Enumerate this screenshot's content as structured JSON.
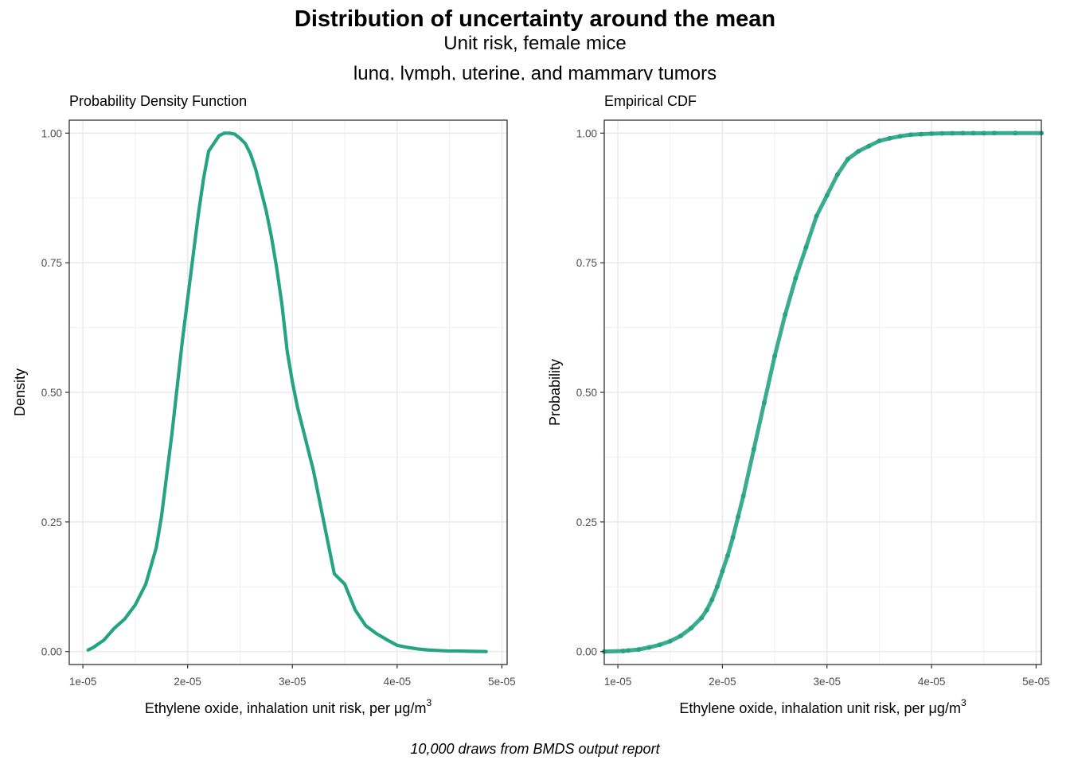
{
  "figure": {
    "title": "Distribution of uncertainty around the mean",
    "subtitle_line1": "Unit risk, female mice",
    "subtitle_line2": "lung, lymph, uterine, and mammary tumors",
    "caption": "10,000 draws from BMDS output report",
    "accent_color": "#26a383"
  },
  "chart_data": [
    {
      "type": "line",
      "title": "Probability Density Function",
      "xlabel": "Ethylene oxide, inhalation unit risk, per μg/m",
      "xlabel_superscript": "3",
      "ylabel": "Density",
      "xlim": [
        8.7e-06,
        5.05e-05
      ],
      "ylim": [
        -0.025,
        1.025
      ],
      "x_ticks": [
        1e-05,
        2e-05,
        3e-05,
        4e-05,
        5e-05
      ],
      "x_tick_labels": [
        "1e-05",
        "2e-05",
        "3e-05",
        "4e-05",
        "5e-05"
      ],
      "y_ticks": [
        0,
        0.25,
        0.5,
        0.75,
        1
      ],
      "y_tick_labels": [
        "0.00",
        "0.25",
        "0.50",
        "0.75",
        "1.00"
      ],
      "grid": true,
      "series": [
        {
          "x": [
            1.05e-05,
            1.1e-05,
            1.2e-05,
            1.3e-05,
            1.4e-05,
            1.5e-05,
            1.6e-05,
            1.7e-05,
            1.75e-05,
            1.8e-05,
            1.85e-05,
            1.9e-05,
            1.95e-05,
            2e-05,
            2.1e-05,
            2.15e-05,
            2.2e-05,
            2.3e-05,
            2.35e-05,
            2.4e-05,
            2.45e-05,
            2.5e-05,
            2.55e-05,
            2.6e-05,
            2.65e-05,
            2.7e-05,
            2.75e-05,
            2.8e-05,
            2.85e-05,
            2.9e-05,
            2.95e-05,
            3e-05,
            3.05e-05,
            3.1e-05,
            3.2e-05,
            3.25e-05,
            3.3e-05,
            3.35e-05,
            3.4e-05,
            3.5e-05,
            3.6e-05,
            3.7e-05,
            3.8e-05,
            3.9e-05,
            4e-05,
            4.1e-05,
            4.2e-05,
            4.3e-05,
            4.4e-05,
            4.5e-05,
            4.6e-05,
            4.7e-05,
            4.85e-05
          ],
          "y": [
            0.003,
            0.008,
            0.022,
            0.045,
            0.063,
            0.09,
            0.13,
            0.2,
            0.26,
            0.34,
            0.42,
            0.51,
            0.6,
            0.68,
            0.84,
            0.91,
            0.965,
            0.995,
            1.0,
            1.0,
            0.998,
            0.99,
            0.98,
            0.96,
            0.93,
            0.89,
            0.85,
            0.8,
            0.74,
            0.67,
            0.58,
            0.52,
            0.47,
            0.43,
            0.35,
            0.3,
            0.25,
            0.2,
            0.15,
            0.13,
            0.08,
            0.05,
            0.035,
            0.023,
            0.012,
            0.008,
            0.005,
            0.003,
            0.002,
            0.001,
            0.001,
            0.0005,
            0.0
          ]
        }
      ]
    },
    {
      "type": "scatter",
      "title": "Empirical CDF",
      "xlabel": "Ethylene oxide, inhalation unit risk, per μg/m",
      "xlabel_superscript": "3",
      "ylabel": "Probability",
      "xlim": [
        8.7e-06,
        5.05e-05
      ],
      "ylim": [
        -0.025,
        1.025
      ],
      "x_ticks": [
        1e-05,
        2e-05,
        3e-05,
        4e-05,
        5e-05
      ],
      "x_tick_labels": [
        "1e-05",
        "2e-05",
        "3e-05",
        "4e-05",
        "5e-05"
      ],
      "y_ticks": [
        0,
        0.25,
        0.5,
        0.75,
        1
      ],
      "y_tick_labels": [
        "0.00",
        "0.25",
        "0.50",
        "0.75",
        "1.00"
      ],
      "grid": true,
      "series": [
        {
          "x": [
            8.7e-06,
            1.05e-05,
            1.1e-05,
            1.2e-05,
            1.3e-05,
            1.4e-05,
            1.5e-05,
            1.6e-05,
            1.7e-05,
            1.8e-05,
            1.85e-05,
            1.9e-05,
            1.95e-05,
            2e-05,
            2.05e-05,
            2.1e-05,
            2.15e-05,
            2.2e-05,
            2.3e-05,
            2.4e-05,
            2.5e-05,
            2.6e-05,
            2.7e-05,
            2.8e-05,
            2.9e-05,
            3e-05,
            3.1e-05,
            3.2e-05,
            3.3e-05,
            3.4e-05,
            3.5e-05,
            3.6e-05,
            3.7e-05,
            3.8e-05,
            3.9e-05,
            4e-05,
            4.1e-05,
            4.2e-05,
            4.3e-05,
            4.4e-05,
            4.5e-05,
            4.6e-05,
            4.8e-05,
            5.05e-05
          ],
          "y": [
            0.0,
            0.001,
            0.002,
            0.004,
            0.008,
            0.013,
            0.02,
            0.03,
            0.045,
            0.065,
            0.08,
            0.1,
            0.125,
            0.155,
            0.185,
            0.22,
            0.26,
            0.3,
            0.39,
            0.48,
            0.57,
            0.65,
            0.72,
            0.78,
            0.84,
            0.88,
            0.92,
            0.95,
            0.965,
            0.975,
            0.985,
            0.99,
            0.994,
            0.997,
            0.998,
            0.999,
            0.9995,
            0.9997,
            0.9998,
            0.9999,
            0.9999,
            1.0,
            1.0,
            1.0
          ]
        }
      ]
    }
  ]
}
